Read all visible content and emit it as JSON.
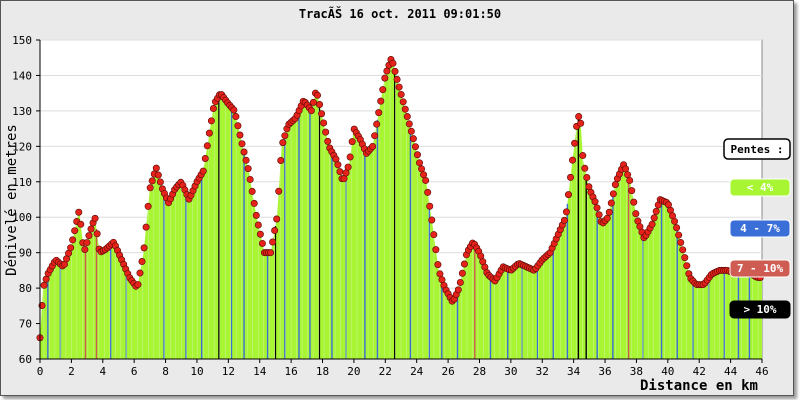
{
  "chart_data": {
    "type": "area",
    "title": "TracÃŠ 16 oct. 2011 09:01:50",
    "xlabel": "Distance en km",
    "ylabel": "Dénivelé en metres",
    "xlim": [
      0,
      46
    ],
    "ylim": [
      60,
      150
    ],
    "xticks": [
      0,
      2,
      4,
      6,
      8,
      10,
      12,
      14,
      16,
      18,
      20,
      22,
      24,
      26,
      28,
      30,
      32,
      34,
      36,
      38,
      40,
      42,
      44,
      46
    ],
    "yticks": [
      60,
      70,
      80,
      90,
      100,
      110,
      120,
      130,
      140,
      150
    ],
    "grid": true,
    "legend_position": "right",
    "legend": {
      "title": "Pentes :",
      "items": [
        {
          "label": "< 4%",
          "color": "#a7f533",
          "text_color": "#ffffff"
        },
        {
          "label": "4 - 7%",
          "color": "#3b6fd8",
          "text_color": "#ffffff"
        },
        {
          "label": "7 - 10%",
          "color": "#cf5c52",
          "text_color": "#ffffff"
        },
        {
          "label": "> 10%",
          "color": "#000000",
          "text_color": "#ffffff"
        }
      ]
    },
    "fill_color": "#a7f533",
    "point_color": "#e5231b",
    "profile": [
      [
        0,
        66
      ],
      [
        0.2,
        80
      ],
      [
        0.5,
        84
      ],
      [
        1.0,
        88
      ],
      [
        1.5,
        86
      ],
      [
        2.0,
        92
      ],
      [
        2.5,
        102
      ],
      [
        2.8,
        90
      ],
      [
        3.2,
        96
      ],
      [
        3.5,
        100
      ],
      [
        3.8,
        90
      ],
      [
        4.2,
        91
      ],
      [
        4.7,
        93
      ],
      [
        5.2,
        88
      ],
      [
        5.7,
        83
      ],
      [
        6.2,
        80
      ],
      [
        6.6,
        90
      ],
      [
        7.0,
        108
      ],
      [
        7.4,
        114
      ],
      [
        7.8,
        108
      ],
      [
        8.2,
        104
      ],
      [
        8.6,
        108
      ],
      [
        9.0,
        110
      ],
      [
        9.5,
        105
      ],
      [
        10.0,
        110
      ],
      [
        10.4,
        113
      ],
      [
        10.8,
        124
      ],
      [
        11.1,
        132
      ],
      [
        11.5,
        135
      ],
      [
        12.0,
        132
      ],
      [
        12.4,
        130
      ],
      [
        12.8,
        122
      ],
      [
        13.3,
        113
      ],
      [
        13.8,
        100
      ],
      [
        14.3,
        90
      ],
      [
        14.7,
        90
      ],
      [
        15.1,
        100
      ],
      [
        15.4,
        120
      ],
      [
        15.8,
        126
      ],
      [
        16.3,
        128
      ],
      [
        16.8,
        133
      ],
      [
        17.3,
        130
      ],
      [
        17.6,
        136
      ],
      [
        18.0,
        128
      ],
      [
        18.4,
        120
      ],
      [
        18.9,
        116
      ],
      [
        19.3,
        110
      ],
      [
        19.7,
        115
      ],
      [
        20.0,
        125
      ],
      [
        20.4,
        122
      ],
      [
        20.8,
        118
      ],
      [
        21.2,
        120
      ],
      [
        21.6,
        130
      ],
      [
        22.0,
        140
      ],
      [
        22.4,
        145
      ],
      [
        22.8,
        138
      ],
      [
        23.3,
        130
      ],
      [
        23.8,
        122
      ],
      [
        24.2,
        115
      ],
      [
        24.6,
        110
      ],
      [
        25.0,
        98
      ],
      [
        25.4,
        85
      ],
      [
        25.8,
        80
      ],
      [
        26.3,
        76
      ],
      [
        26.7,
        80
      ],
      [
        27.2,
        90
      ],
      [
        27.6,
        93
      ],
      [
        28.0,
        90
      ],
      [
        28.5,
        84
      ],
      [
        29.0,
        82
      ],
      [
        29.5,
        86
      ],
      [
        30.0,
        85
      ],
      [
        30.5,
        87
      ],
      [
        31.0,
        86
      ],
      [
        31.5,
        85
      ],
      [
        32.0,
        88
      ],
      [
        32.5,
        90
      ],
      [
        33.0,
        95
      ],
      [
        33.5,
        100
      ],
      [
        33.9,
        115
      ],
      [
        34.2,
        126
      ],
      [
        34.4,
        130
      ],
      [
        34.6,
        116
      ],
      [
        35.0,
        108
      ],
      [
        35.4,
        104
      ],
      [
        35.8,
        98
      ],
      [
        36.2,
        100
      ],
      [
        36.7,
        110
      ],
      [
        37.2,
        115
      ],
      [
        37.6,
        110
      ],
      [
        38.0,
        100
      ],
      [
        38.5,
        94
      ],
      [
        39.0,
        98
      ],
      [
        39.5,
        105
      ],
      [
        40.0,
        104
      ],
      [
        40.5,
        98
      ],
      [
        41.0,
        90
      ],
      [
        41.4,
        83
      ],
      [
        41.8,
        81
      ],
      [
        42.3,
        81
      ],
      [
        42.8,
        84
      ],
      [
        43.3,
        85
      ],
      [
        43.8,
        85
      ],
      [
        44.3,
        84
      ],
      [
        44.8,
        84
      ],
      [
        45.3,
        84
      ],
      [
        45.7,
        83
      ],
      [
        46.0,
        83
      ]
    ],
    "slope_bands": [
      {
        "x": 0.5,
        "class": "4 - 7%"
      },
      {
        "x": 1.3,
        "class": "4 - 7%"
      },
      {
        "x": 2.9,
        "class": "7 - 10%"
      },
      {
        "x": 3.6,
        "class": "7 - 10%"
      },
      {
        "x": 4.5,
        "class": "4 - 7%"
      },
      {
        "x": 5.5,
        "class": "4 - 7%"
      },
      {
        "x": 7.9,
        "class": "4 - 7%"
      },
      {
        "x": 9.3,
        "class": "4 - 7%"
      },
      {
        "x": 10.3,
        "class": "4 - 7%"
      },
      {
        "x": 11.4,
        "class": "> 10%"
      },
      {
        "x": 12.2,
        "class": "4 - 7%"
      },
      {
        "x": 13.0,
        "class": "4 - 7%"
      },
      {
        "x": 14.5,
        "class": "4 - 7%"
      },
      {
        "x": 15.0,
        "class": "> 10%"
      },
      {
        "x": 15.6,
        "class": "4 - 7%"
      },
      {
        "x": 16.5,
        "class": "4 - 7%"
      },
      {
        "x": 17.2,
        "class": "4 - 7%"
      },
      {
        "x": 17.8,
        "class": "> 10%"
      },
      {
        "x": 18.6,
        "class": "4 - 7%"
      },
      {
        "x": 19.5,
        "class": "4 - 7%"
      },
      {
        "x": 20.7,
        "class": "4 - 7%"
      },
      {
        "x": 21.5,
        "class": "4 - 7%"
      },
      {
        "x": 22.6,
        "class": "> 10%"
      },
      {
        "x": 23.6,
        "class": "4 - 7%"
      },
      {
        "x": 24.8,
        "class": "4 - 7%"
      },
      {
        "x": 25.6,
        "class": "4 - 7%"
      },
      {
        "x": 26.6,
        "class": "4 - 7%"
      },
      {
        "x": 27.7,
        "class": "7 - 10%"
      },
      {
        "x": 28.7,
        "class": "4 - 7%"
      },
      {
        "x": 29.8,
        "class": "4 - 7%"
      },
      {
        "x": 30.7,
        "class": "4 - 7%"
      },
      {
        "x": 31.7,
        "class": "4 - 7%"
      },
      {
        "x": 32.7,
        "class": "4 - 7%"
      },
      {
        "x": 33.6,
        "class": "4 - 7%"
      },
      {
        "x": 34.3,
        "class": "> 10%"
      },
      {
        "x": 34.8,
        "class": "> 10%"
      },
      {
        "x": 35.5,
        "class": "4 - 7%"
      },
      {
        "x": 36.5,
        "class": "4 - 7%"
      },
      {
        "x": 37.5,
        "class": "7 - 10%"
      },
      {
        "x": 38.4,
        "class": "4 - 7%"
      },
      {
        "x": 39.6,
        "class": "4 - 7%"
      },
      {
        "x": 40.6,
        "class": "4 - 7%"
      },
      {
        "x": 41.6,
        "class": "4 - 7%"
      },
      {
        "x": 42.6,
        "class": "4 - 7%"
      },
      {
        "x": 43.6,
        "class": "4 - 7%"
      },
      {
        "x": 44.5,
        "class": "4 - 7%"
      },
      {
        "x": 45.2,
        "class": "4 - 7%"
      }
    ]
  }
}
